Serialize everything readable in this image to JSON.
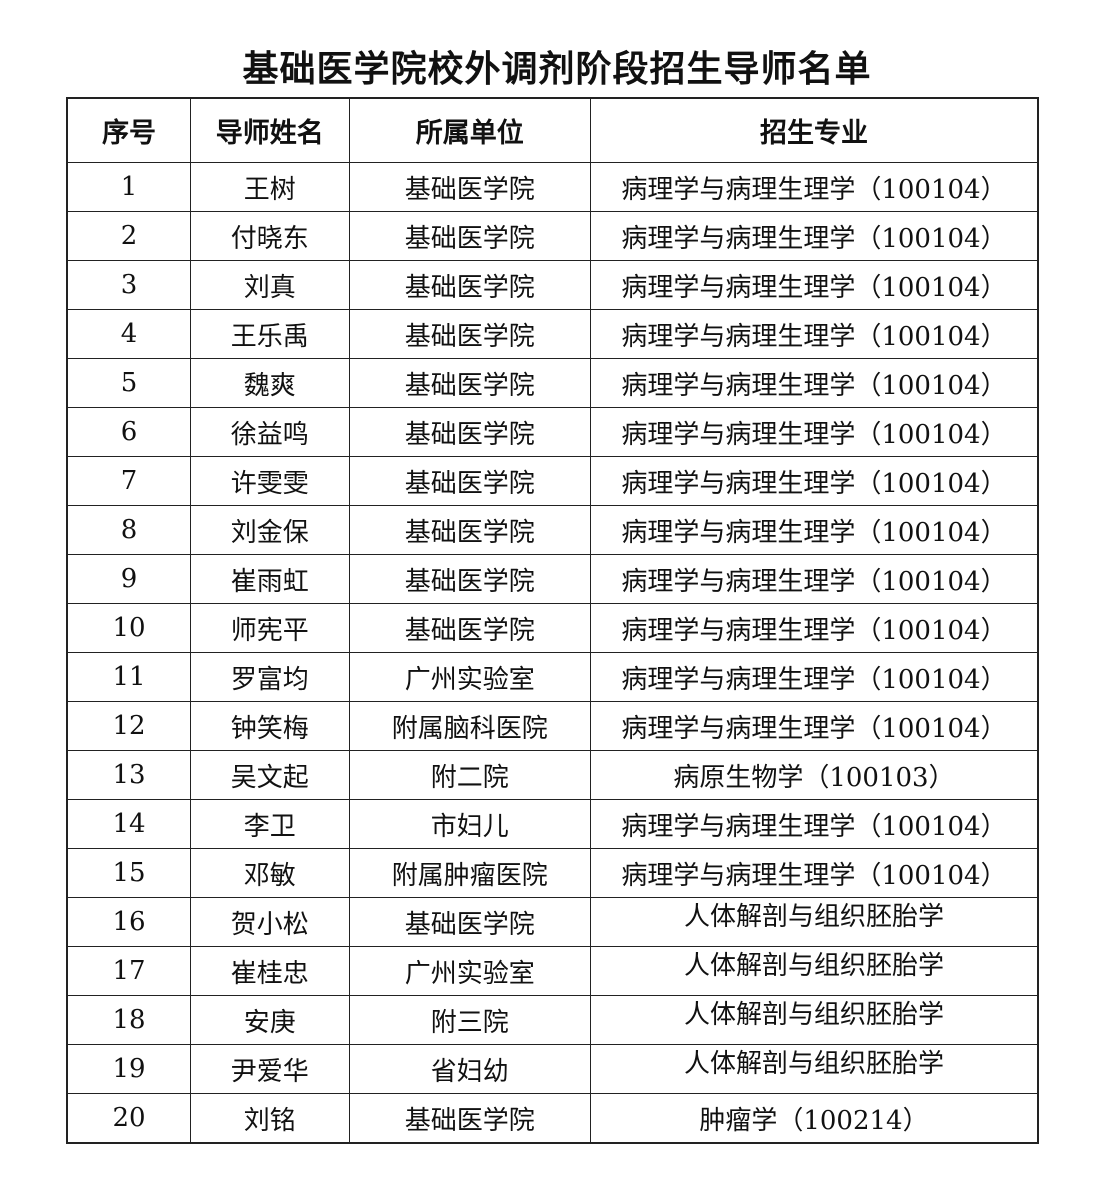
{
  "title": "基础医学院校外调剂阶段招生导师名单",
  "headers": [
    "序号",
    "导师姓名",
    "所属单位",
    "招生专业"
  ],
  "rows": [
    [
      "1",
      "王树",
      "基础医学院",
      "病理学与病理生理学（100104）"
    ],
    [
      "2",
      "付晓东",
      "基础医学院",
      "病理学与病理生理学（100104）"
    ],
    [
      "3",
      "刘真",
      "基础医学院",
      "病理学与病理生理学（100104）"
    ],
    [
      "4",
      "王乐禹",
      "基础医学院",
      "病理学与病理生理学（100104）"
    ],
    [
      "5",
      "魏爽",
      "基础医学院",
      "病理学与病理生理学（100104）"
    ],
    [
      "6",
      "徐益鸣",
      "基础医学院",
      "病理学与病理生理学（100104）"
    ],
    [
      "7",
      "许雯雯",
      "基础医学院",
      "病理学与病理生理学（100104）"
    ],
    [
      "8",
      "刘金保",
      "基础医学院",
      "病理学与病理生理学（100104）"
    ],
    [
      "9",
      "崔雨虹",
      "基础医学院",
      "病理学与病理生理学（100104）"
    ],
    [
      "10",
      "师宪平",
      "基础医学院",
      "病理学与病理生理学（100104）"
    ],
    [
      "11",
      "罗富均",
      "广州实验室",
      "病理学与病理生理学（100104）"
    ],
    [
      "12",
      "钟笑梅",
      "附属脑科医院",
      "病理学与病理生理学（100104）"
    ],
    [
      "13",
      "吴文起",
      "附二院",
      "病原生物学（100103）"
    ],
    [
      "14",
      "李卫",
      "市妇儿",
      "病理学与病理生理学（100104）"
    ],
    [
      "15",
      "邓敏",
      "附属肿瘤医院",
      "病理学与病理生理学（100104）"
    ],
    [
      "16",
      "贺小松",
      "基础医学院",
      "人体解剖与组织胚胎学"
    ],
    [
      "17",
      "崔桂忠",
      "广州实验室",
      "人体解剖与组织胚胎学"
    ],
    [
      "18",
      "安庚",
      "附三院",
      "人体解剖与组织胚胎学"
    ],
    [
      "19",
      "尹爱华",
      "省妇幼",
      "人体解剖与组织胚胎学"
    ],
    [
      "20",
      "刘铭",
      "基础医学院",
      "肿瘤学（100214）"
    ]
  ]
}
